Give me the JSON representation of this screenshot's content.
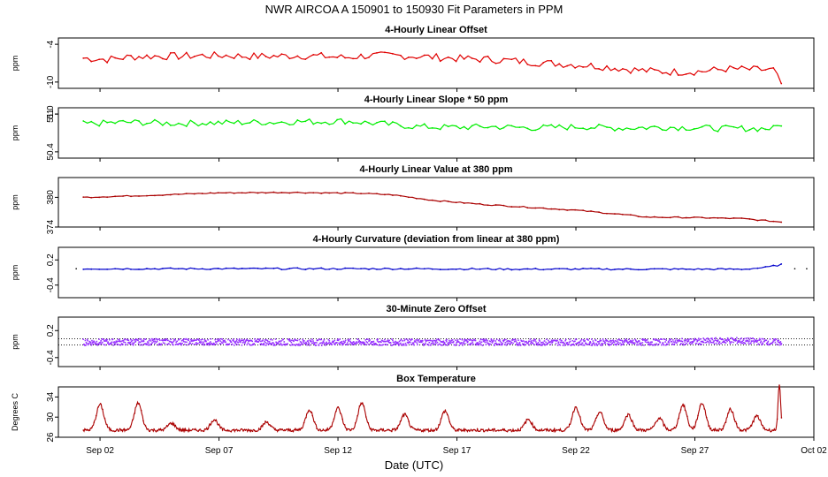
{
  "figure": {
    "title": "NWR   AIRCOA A   150901 to 150930   Fit Parameters in PPM",
    "xlabel": "Date (UTC)",
    "x_ticks": [
      "Sep 02",
      "Sep 07",
      "Sep 12",
      "Sep 17",
      "Sep 22",
      "Sep 27",
      "Oct 02"
    ]
  },
  "chart_data": [
    {
      "type": "line",
      "title": "4-Hourly Linear Offset",
      "ylabel": "ppm",
      "y_ticks": [
        "-4",
        "-10"
      ],
      "ylim": [
        -11,
        -3
      ],
      "color": "#e00000",
      "x_day_range": [
        1.3,
        30.65
      ],
      "series": [
        {
          "x": [
            1.3,
            2.3,
            3.3,
            4.3,
            5.3,
            6.3,
            7.3,
            8.3,
            9.3,
            10.3,
            11.3,
            12.3,
            13.3,
            14.3,
            15.3,
            16.3,
            17.3,
            18.3,
            19.3,
            20.3,
            21.3,
            22.3,
            23.3,
            24.3,
            25.3,
            26.3,
            27.3,
            28.3,
            29.3,
            30.3,
            30.65
          ],
          "y": [
            -6.2,
            -6.4,
            -6.0,
            -5.9,
            -5.9,
            -5.8,
            -5.8,
            -5.9,
            -5.9,
            -5.8,
            -5.9,
            -6.1,
            -5.8,
            -5.8,
            -5.9,
            -6.1,
            -6.3,
            -6.4,
            -6.6,
            -6.9,
            -7.1,
            -7.3,
            -7.6,
            -8.0,
            -8.3,
            -8.4,
            -8.3,
            -7.9,
            -8.0,
            -8.1,
            -10.4
          ]
        }
      ]
    },
    {
      "type": "line",
      "title": "4-Hourly Linear Slope * 50 ppm",
      "ylabel": "ppm",
      "y_ticks": [
        "51.0",
        "51",
        "50.4"
      ],
      "ylim": [
        50.3,
        51.1
      ],
      "color": "#00ee00",
      "x_day_range": [
        1.3,
        30.65
      ],
      "series": [
        {
          "x": [
            1.3,
            2.3,
            3.3,
            4.3,
            5.3,
            6.3,
            7.3,
            8.3,
            9.3,
            10.3,
            11.3,
            12.3,
            13.3,
            14.3,
            15.3,
            16.3,
            17.3,
            18.3,
            19.3,
            20.3,
            21.3,
            22.3,
            23.3,
            24.3,
            25.3,
            26.3,
            27.3,
            28.3,
            29.3,
            30.3,
            30.65
          ],
          "y": [
            50.84,
            50.86,
            50.87,
            50.86,
            50.85,
            50.86,
            50.86,
            50.87,
            50.87,
            50.88,
            50.88,
            50.89,
            50.86,
            50.83,
            50.8,
            50.79,
            50.79,
            50.8,
            50.79,
            50.78,
            50.79,
            50.8,
            50.78,
            50.78,
            50.79,
            50.79,
            50.78,
            50.77,
            50.77,
            50.77,
            50.85
          ]
        }
      ]
    },
    {
      "type": "line",
      "title": "4-Hourly Linear Value at 380 ppm",
      "ylabel": "ppm",
      "y_ticks": [
        "380",
        "374"
      ],
      "ylim": [
        374,
        384
      ],
      "color": "#aa0000",
      "x_day_range": [
        1.3,
        30.65
      ],
      "series": [
        {
          "x": [
            1.3,
            4.0,
            7.0,
            10.0,
            13.0,
            14.3,
            16.0,
            18.0,
            20.0,
            22.0,
            24.0,
            25.0,
            27.0,
            29.0,
            30.65
          ],
          "y": [
            380.0,
            380.4,
            380.9,
            381.0,
            380.8,
            380.5,
            379.4,
            378.6,
            378.0,
            377.4,
            376.5,
            376.0,
            375.9,
            375.7,
            375.0
          ]
        }
      ]
    },
    {
      "type": "line",
      "title": "4-Hourly Curvature (deviation from linear at 380 ppm)",
      "ylabel": "ppm",
      "y_ticks": [
        "0.2",
        "-0.4"
      ],
      "ylim": [
        -0.7,
        0.5
      ],
      "color": "#0000cc",
      "x_day_range": [
        1.3,
        30.65
      ],
      "series": [
        {
          "x": [
            1.3,
            5.0,
            10.0,
            15.0,
            20.0,
            25.0,
            29.0,
            30.0,
            30.65
          ],
          "y": [
            -0.01,
            -0.01,
            -0.01,
            -0.01,
            -0.02,
            -0.02,
            -0.02,
            0.02,
            0.09
          ]
        }
      ]
    },
    {
      "type": "scatter",
      "title": "30-Minute Zero Offset",
      "ylabel": "ppm",
      "y_ticks": [
        "0.2",
        "-0.4"
      ],
      "ylim": [
        -0.6,
        0.5
      ],
      "color": "#9933ff",
      "reference_lines": [
        0.02,
        -0.12
      ],
      "x_day_range": [
        1.3,
        30.65
      ],
      "series": [
        {
          "x": [
            1.3,
            5.0,
            10.0,
            15.0,
            20.0,
            25.0,
            27.5,
            28.5,
            30.65
          ],
          "y": [
            -0.06,
            -0.05,
            -0.06,
            -0.06,
            -0.06,
            -0.06,
            -0.04,
            -0.02,
            -0.06
          ]
        }
      ]
    },
    {
      "type": "line",
      "title": "Box Temperature",
      "ylabel": "Degrees C",
      "y_ticks": [
        "34",
        "30",
        "26"
      ],
      "ylim": [
        26,
        36
      ],
      "color": "#aa0000",
      "x_day_range": [
        1.3,
        30.65
      ],
      "daily_peak_c": [
        {
          "day": 2.0,
          "peak": 32.5
        },
        {
          "day": 3.6,
          "peak": 32.8
        },
        {
          "day": 5.0,
          "peak": 28.8
        },
        {
          "day": 6.8,
          "peak": 29.5
        },
        {
          "day": 9.0,
          "peak": 29.0
        },
        {
          "day": 10.8,
          "peak": 31.5
        },
        {
          "day": 12.0,
          "peak": 31.8
        },
        {
          "day": 13.0,
          "peak": 32.8
        },
        {
          "day": 14.8,
          "peak": 30.5
        },
        {
          "day": 16.5,
          "peak": 31.2
        },
        {
          "day": 20.0,
          "peak": 29.5
        },
        {
          "day": 22.0,
          "peak": 32.0
        },
        {
          "day": 23.0,
          "peak": 31.0
        },
        {
          "day": 24.2,
          "peak": 30.5
        },
        {
          "day": 25.5,
          "peak": 29.8
        },
        {
          "day": 26.5,
          "peak": 32.4
        },
        {
          "day": 27.3,
          "peak": 32.8
        },
        {
          "day": 28.5,
          "peak": 31.5
        },
        {
          "day": 29.6,
          "peak": 30.2
        },
        {
          "day": 30.55,
          "peak": 36.2
        }
      ]
    }
  ]
}
